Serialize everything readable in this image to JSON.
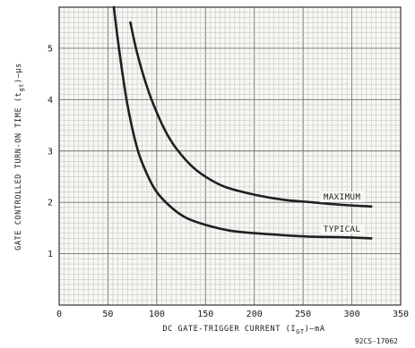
{
  "chart_data": {
    "type": "line",
    "xlim": [
      0,
      350
    ],
    "ylim": [
      0,
      5.8
    ],
    "x_ticks": [
      "0",
      "50",
      "100",
      "150",
      "200",
      "250",
      "300",
      "350"
    ],
    "y_ticks": [
      "1",
      "2",
      "3",
      "4",
      "5"
    ],
    "xlabel": "DC GATE-TRIGGER CURRENT (I",
    "xlabel_sub": "GT",
    "xlabel_unit": ")—mA",
    "ylabel": "GATE CONTROLLED TURN-ON TIME (t",
    "ylabel_sub": "gt",
    "ylabel_unit": ")—µs",
    "grid": true,
    "series": [
      {
        "name": "MAXIMUM",
        "x": [
          73,
          80,
          90,
          100,
          110,
          120,
          135,
          150,
          170,
          200,
          230,
          260,
          290,
          320
        ],
        "y": [
          5.5,
          4.9,
          4.25,
          3.75,
          3.35,
          3.05,
          2.72,
          2.5,
          2.3,
          2.15,
          2.05,
          2.0,
          1.95,
          1.92
        ]
      },
      {
        "name": "TYPICAL",
        "x": [
          56,
          62,
          70,
          80,
          90,
          100,
          115,
          130,
          150,
          175,
          200,
          230,
          260,
          290,
          320
        ],
        "y": [
          5.8,
          4.9,
          3.9,
          3.05,
          2.55,
          2.2,
          1.9,
          1.7,
          1.56,
          1.45,
          1.4,
          1.36,
          1.33,
          1.32,
          1.3
        ]
      }
    ],
    "figure_code": "92CS-17062"
  }
}
